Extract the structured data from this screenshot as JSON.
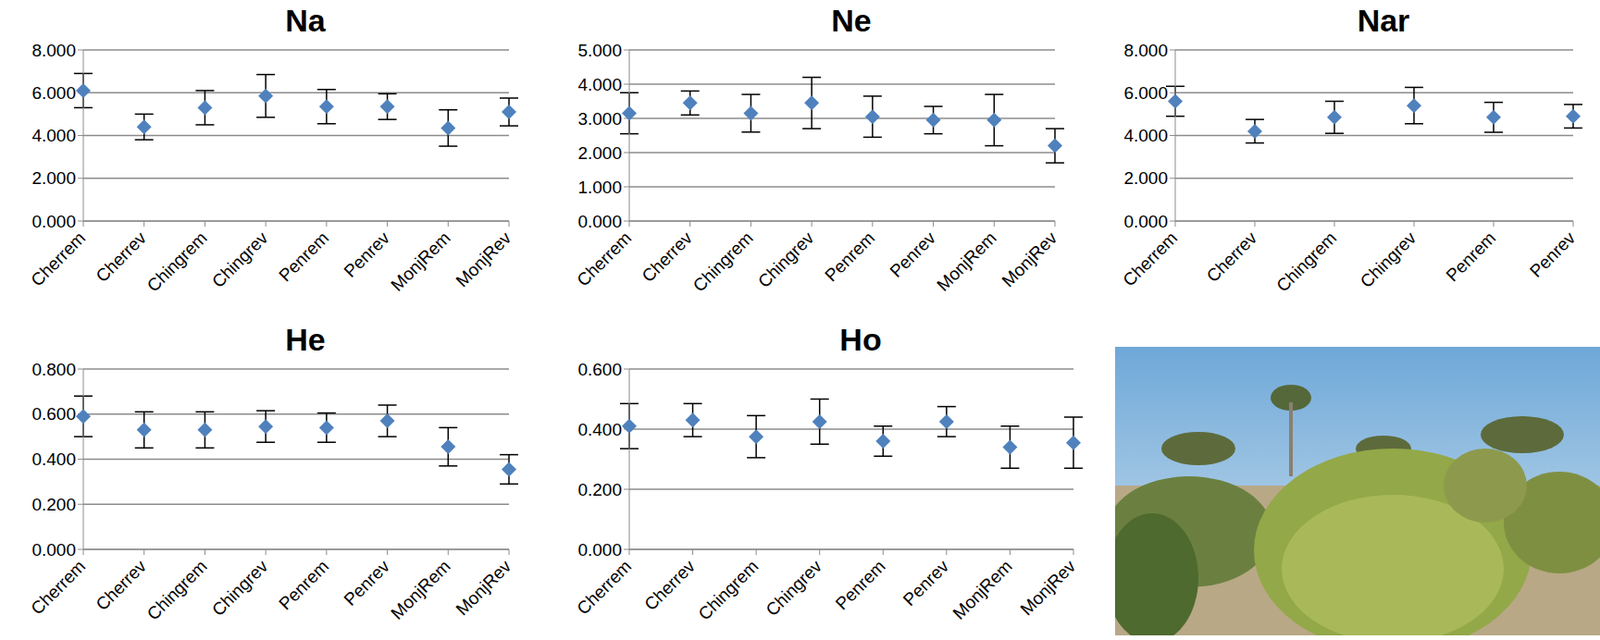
{
  "chart_data": [
    {
      "type": "scatter",
      "title": "Na",
      "marker": "diamond",
      "color": "#4f81bd",
      "grid": true,
      "categories": [
        "Cherrem",
        "Cherrev",
        "Chingrem",
        "Chingrev",
        "Penrem",
        "Penrev",
        "MonjRem",
        "MonjRev"
      ],
      "values": [
        6.1,
        4.4,
        5.3,
        5.85,
        5.35,
        5.35,
        4.35,
        5.1
      ],
      "errors": [
        0.8,
        0.6,
        0.8,
        1.0,
        0.8,
        0.6,
        0.85,
        0.65
      ],
      "ylim": [
        0,
        8
      ],
      "yticks": [
        {
          "value": 0,
          "label": "0.000"
        },
        {
          "value": 2,
          "label": "2.000"
        },
        {
          "value": 4,
          "label": "4.000"
        },
        {
          "value": 6,
          "label": "6.000"
        },
        {
          "value": 8,
          "label": "8.000"
        }
      ]
    },
    {
      "type": "scatter",
      "title": "Ne",
      "marker": "diamond",
      "color": "#4f81bd",
      "grid": true,
      "categories": [
        "Cherrem",
        "Cherrev",
        "Chingrem",
        "Chingrev",
        "Penrem",
        "Penrev",
        "MonjRem",
        "MonjRev"
      ],
      "values": [
        3.15,
        3.45,
        3.15,
        3.45,
        3.05,
        2.95,
        2.95,
        2.2
      ],
      "errors": [
        0.6,
        0.35,
        0.55,
        0.75,
        0.6,
        0.4,
        0.75,
        0.5
      ],
      "ylim": [
        0,
        5
      ],
      "yticks": [
        {
          "value": 0,
          "label": "0.000"
        },
        {
          "value": 1,
          "label": "1.000"
        },
        {
          "value": 2,
          "label": "2.000"
        },
        {
          "value": 3,
          "label": "3.000"
        },
        {
          "value": 4,
          "label": "4.000"
        },
        {
          "value": 5,
          "label": "5.000"
        }
      ]
    },
    {
      "type": "scatter",
      "title": "Nar",
      "marker": "diamond",
      "color": "#4f81bd",
      "grid": true,
      "categories": [
        "Cherrem",
        "Cherrev",
        "Chingrem",
        "Chingrev",
        "Penrem",
        "Penrev"
      ],
      "values": [
        5.6,
        4.2,
        4.85,
        5.4,
        4.85,
        4.9
      ],
      "errors": [
        0.7,
        0.55,
        0.75,
        0.85,
        0.7,
        0.55
      ],
      "ylim": [
        0,
        8
      ],
      "yticks": [
        {
          "value": 0,
          "label": "0.000"
        },
        {
          "value": 2,
          "label": "2.000"
        },
        {
          "value": 4,
          "label": "4.000"
        },
        {
          "value": 6,
          "label": "6.000"
        },
        {
          "value": 8,
          "label": "8.000"
        }
      ]
    },
    {
      "type": "scatter",
      "title": "He",
      "marker": "diamond",
      "color": "#4f81bd",
      "grid": true,
      "categories": [
        "Cherrem",
        "Cherrev",
        "Chingrem",
        "Chingrev",
        "Penrem",
        "Penrev",
        "MonjRem",
        "MonjRev"
      ],
      "values": [
        0.59,
        0.53,
        0.53,
        0.545,
        0.54,
        0.57,
        0.455,
        0.355
      ],
      "errors": [
        0.09,
        0.08,
        0.08,
        0.07,
        0.065,
        0.07,
        0.085,
        0.065
      ],
      "ylim": [
        0,
        0.8
      ],
      "yticks": [
        {
          "value": 0,
          "label": "0.000"
        },
        {
          "value": 0.2,
          "label": "0.200"
        },
        {
          "value": 0.4,
          "label": "0.400"
        },
        {
          "value": 0.6,
          "label": "0.600"
        },
        {
          "value": 0.8,
          "label": "0.800"
        }
      ]
    },
    {
      "type": "scatter",
      "title": "Ho",
      "marker": "diamond",
      "color": "#4f81bd",
      "grid": true,
      "categories": [
        "Cherrem",
        "Cherrev",
        "Chingrem",
        "Chingrev",
        "Penrem",
        "Penrev",
        "MonjRem",
        "MonjRev"
      ],
      "values": [
        0.41,
        0.43,
        0.375,
        0.425,
        0.36,
        0.425,
        0.34,
        0.355
      ],
      "errors": [
        0.075,
        0.055,
        0.07,
        0.075,
        0.05,
        0.05,
        0.07,
        0.085
      ],
      "ylim": [
        0,
        0.6
      ],
      "yticks": [
        {
          "value": 0,
          "label": "0.000"
        },
        {
          "value": 0.2,
          "label": "0.200"
        },
        {
          "value": 0.4,
          "label": "0.400"
        },
        {
          "value": 0.6,
          "label": "0.600"
        }
      ]
    }
  ]
}
